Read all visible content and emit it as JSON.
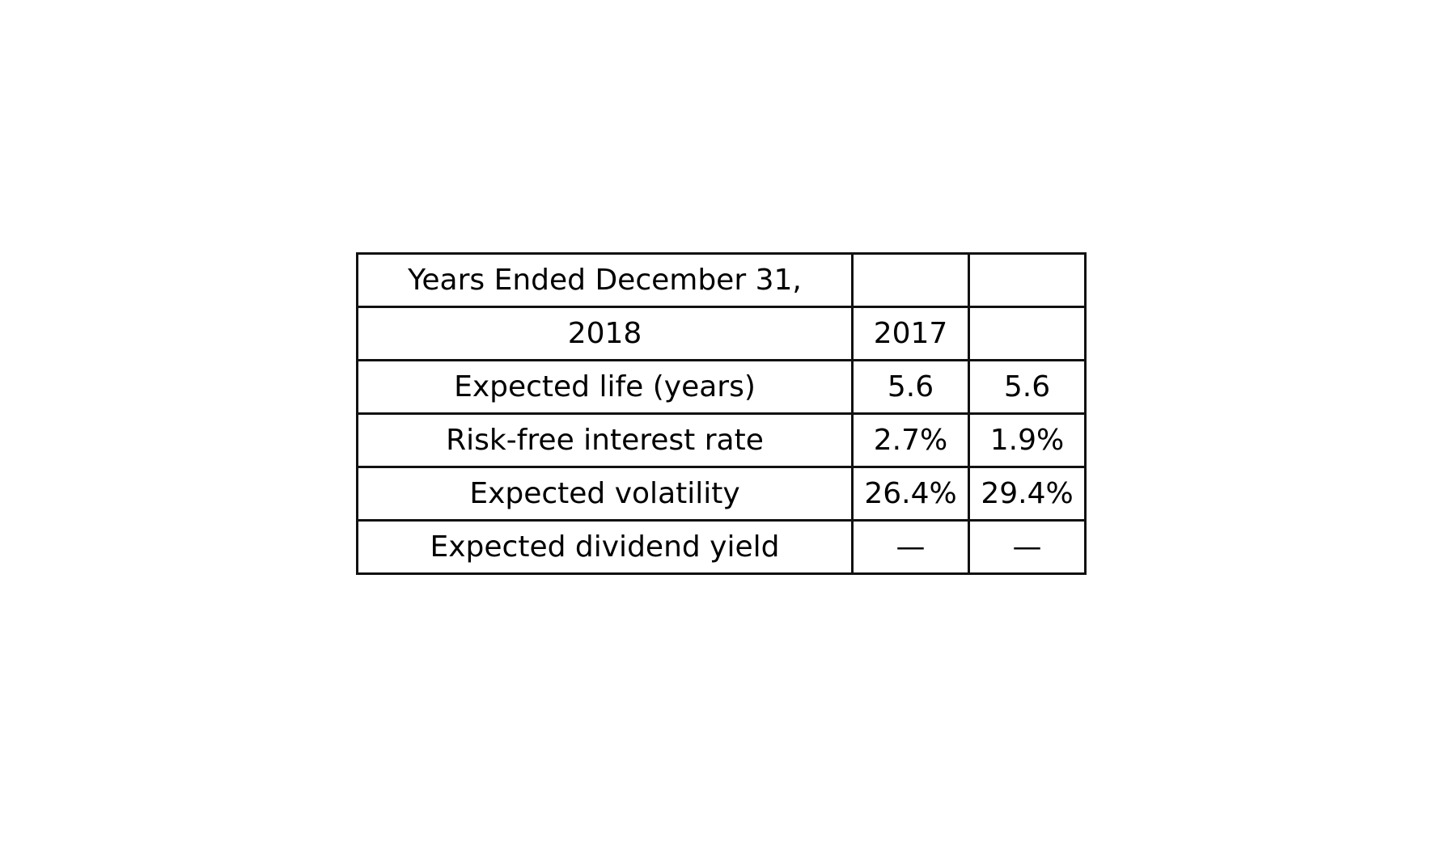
{
  "table": {
    "rows": [
      [
        "Years Ended December 31,",
        "",
        ""
      ],
      [
        "2018",
        "2017",
        ""
      ],
      [
        "Expected life (years)",
        "5.6",
        "5.6"
      ],
      [
        "Risk-free interest rate",
        "2.7%",
        "1.9%"
      ],
      [
        "Expected volatility",
        "26.4%",
        "29.4%"
      ],
      [
        "Expected dividend yield",
        "—",
        "—"
      ]
    ]
  }
}
